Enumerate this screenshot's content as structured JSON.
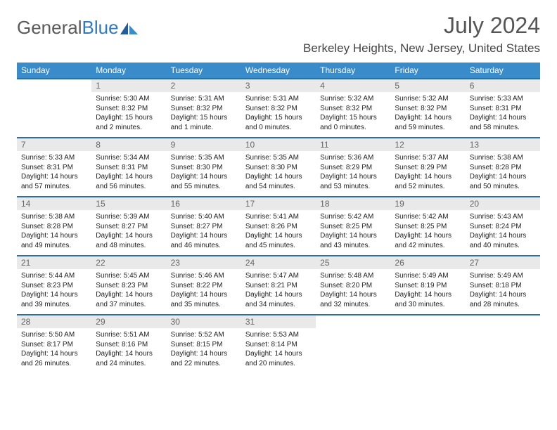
{
  "brand": {
    "first": "General",
    "second": "Blue",
    "first_color": "#5a5a5a",
    "second_color": "#2f7abf"
  },
  "title": "July 2024",
  "location": "Berkeley Heights, New Jersey, United States",
  "colors": {
    "header_bg": "#3a8bc9",
    "header_text": "#ffffff",
    "week_border": "#2f6fa3",
    "daynum_bg": "#e9e9e9",
    "daynum_text": "#666666",
    "body_text": "#222222",
    "page_bg": "#ffffff"
  },
  "day_names": [
    "Sunday",
    "Monday",
    "Tuesday",
    "Wednesday",
    "Thursday",
    "Friday",
    "Saturday"
  ],
  "weeks": [
    [
      {
        "n": "",
        "sr": "",
        "ss": "",
        "dl": ""
      },
      {
        "n": "1",
        "sr": "Sunrise: 5:30 AM",
        "ss": "Sunset: 8:32 PM",
        "dl": "Daylight: 15 hours and 2 minutes."
      },
      {
        "n": "2",
        "sr": "Sunrise: 5:31 AM",
        "ss": "Sunset: 8:32 PM",
        "dl": "Daylight: 15 hours and 1 minute."
      },
      {
        "n": "3",
        "sr": "Sunrise: 5:31 AM",
        "ss": "Sunset: 8:32 PM",
        "dl": "Daylight: 15 hours and 0 minutes."
      },
      {
        "n": "4",
        "sr": "Sunrise: 5:32 AM",
        "ss": "Sunset: 8:32 PM",
        "dl": "Daylight: 15 hours and 0 minutes."
      },
      {
        "n": "5",
        "sr": "Sunrise: 5:32 AM",
        "ss": "Sunset: 8:32 PM",
        "dl": "Daylight: 14 hours and 59 minutes."
      },
      {
        "n": "6",
        "sr": "Sunrise: 5:33 AM",
        "ss": "Sunset: 8:31 PM",
        "dl": "Daylight: 14 hours and 58 minutes."
      }
    ],
    [
      {
        "n": "7",
        "sr": "Sunrise: 5:33 AM",
        "ss": "Sunset: 8:31 PM",
        "dl": "Daylight: 14 hours and 57 minutes."
      },
      {
        "n": "8",
        "sr": "Sunrise: 5:34 AM",
        "ss": "Sunset: 8:31 PM",
        "dl": "Daylight: 14 hours and 56 minutes."
      },
      {
        "n": "9",
        "sr": "Sunrise: 5:35 AM",
        "ss": "Sunset: 8:30 PM",
        "dl": "Daylight: 14 hours and 55 minutes."
      },
      {
        "n": "10",
        "sr": "Sunrise: 5:35 AM",
        "ss": "Sunset: 8:30 PM",
        "dl": "Daylight: 14 hours and 54 minutes."
      },
      {
        "n": "11",
        "sr": "Sunrise: 5:36 AM",
        "ss": "Sunset: 8:29 PM",
        "dl": "Daylight: 14 hours and 53 minutes."
      },
      {
        "n": "12",
        "sr": "Sunrise: 5:37 AM",
        "ss": "Sunset: 8:29 PM",
        "dl": "Daylight: 14 hours and 52 minutes."
      },
      {
        "n": "13",
        "sr": "Sunrise: 5:38 AM",
        "ss": "Sunset: 8:28 PM",
        "dl": "Daylight: 14 hours and 50 minutes."
      }
    ],
    [
      {
        "n": "14",
        "sr": "Sunrise: 5:38 AM",
        "ss": "Sunset: 8:28 PM",
        "dl": "Daylight: 14 hours and 49 minutes."
      },
      {
        "n": "15",
        "sr": "Sunrise: 5:39 AM",
        "ss": "Sunset: 8:27 PM",
        "dl": "Daylight: 14 hours and 48 minutes."
      },
      {
        "n": "16",
        "sr": "Sunrise: 5:40 AM",
        "ss": "Sunset: 8:27 PM",
        "dl": "Daylight: 14 hours and 46 minutes."
      },
      {
        "n": "17",
        "sr": "Sunrise: 5:41 AM",
        "ss": "Sunset: 8:26 PM",
        "dl": "Daylight: 14 hours and 45 minutes."
      },
      {
        "n": "18",
        "sr": "Sunrise: 5:42 AM",
        "ss": "Sunset: 8:25 PM",
        "dl": "Daylight: 14 hours and 43 minutes."
      },
      {
        "n": "19",
        "sr": "Sunrise: 5:42 AM",
        "ss": "Sunset: 8:25 PM",
        "dl": "Daylight: 14 hours and 42 minutes."
      },
      {
        "n": "20",
        "sr": "Sunrise: 5:43 AM",
        "ss": "Sunset: 8:24 PM",
        "dl": "Daylight: 14 hours and 40 minutes."
      }
    ],
    [
      {
        "n": "21",
        "sr": "Sunrise: 5:44 AM",
        "ss": "Sunset: 8:23 PM",
        "dl": "Daylight: 14 hours and 39 minutes."
      },
      {
        "n": "22",
        "sr": "Sunrise: 5:45 AM",
        "ss": "Sunset: 8:23 PM",
        "dl": "Daylight: 14 hours and 37 minutes."
      },
      {
        "n": "23",
        "sr": "Sunrise: 5:46 AM",
        "ss": "Sunset: 8:22 PM",
        "dl": "Daylight: 14 hours and 35 minutes."
      },
      {
        "n": "24",
        "sr": "Sunrise: 5:47 AM",
        "ss": "Sunset: 8:21 PM",
        "dl": "Daylight: 14 hours and 34 minutes."
      },
      {
        "n": "25",
        "sr": "Sunrise: 5:48 AM",
        "ss": "Sunset: 8:20 PM",
        "dl": "Daylight: 14 hours and 32 minutes."
      },
      {
        "n": "26",
        "sr": "Sunrise: 5:49 AM",
        "ss": "Sunset: 8:19 PM",
        "dl": "Daylight: 14 hours and 30 minutes."
      },
      {
        "n": "27",
        "sr": "Sunrise: 5:49 AM",
        "ss": "Sunset: 8:18 PM",
        "dl": "Daylight: 14 hours and 28 minutes."
      }
    ],
    [
      {
        "n": "28",
        "sr": "Sunrise: 5:50 AM",
        "ss": "Sunset: 8:17 PM",
        "dl": "Daylight: 14 hours and 26 minutes."
      },
      {
        "n": "29",
        "sr": "Sunrise: 5:51 AM",
        "ss": "Sunset: 8:16 PM",
        "dl": "Daylight: 14 hours and 24 minutes."
      },
      {
        "n": "30",
        "sr": "Sunrise: 5:52 AM",
        "ss": "Sunset: 8:15 PM",
        "dl": "Daylight: 14 hours and 22 minutes."
      },
      {
        "n": "31",
        "sr": "Sunrise: 5:53 AM",
        "ss": "Sunset: 8:14 PM",
        "dl": "Daylight: 14 hours and 20 minutes."
      },
      {
        "n": "",
        "sr": "",
        "ss": "",
        "dl": ""
      },
      {
        "n": "",
        "sr": "",
        "ss": "",
        "dl": ""
      },
      {
        "n": "",
        "sr": "",
        "ss": "",
        "dl": ""
      }
    ]
  ]
}
